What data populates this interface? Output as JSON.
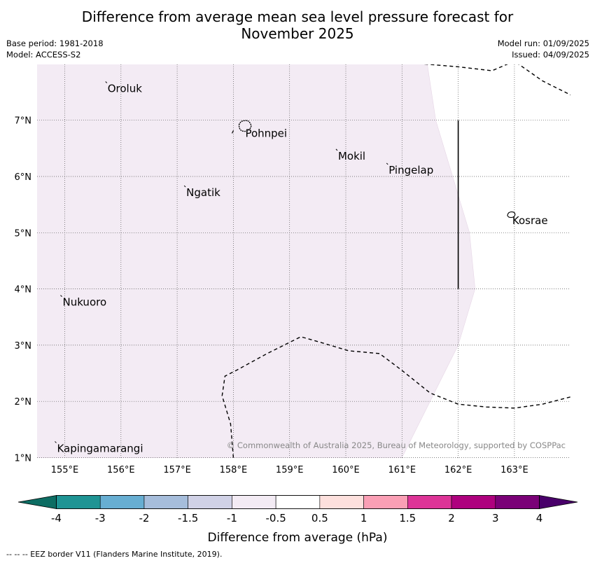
{
  "title": {
    "line1": "Difference from average mean sea level pressure forecast for",
    "line2": "November 2025"
  },
  "meta": {
    "base_period": "Base period: 1981-2018",
    "model": "Model: ACCESS-S2",
    "model_run": "Model run: 01/09/2025",
    "issued": "Issued: 04/09/2025"
  },
  "map": {
    "lon_range": [
      154.5,
      164.0
    ],
    "lat_range": [
      1.0,
      8.0
    ],
    "lon_ticks": [
      {
        "value": 155,
        "label": "155°E"
      },
      {
        "value": 156,
        "label": "156°E"
      },
      {
        "value": 157,
        "label": "157°E"
      },
      {
        "value": 158,
        "label": "158°E"
      },
      {
        "value": 159,
        "label": "159°E"
      },
      {
        "value": 160,
        "label": "160°E"
      },
      {
        "value": 161,
        "label": "161°E"
      },
      {
        "value": 162,
        "label": "162°E"
      },
      {
        "value": 163,
        "label": "163°E"
      }
    ],
    "lat_ticks": [
      {
        "value": 1,
        "label": "1°N"
      },
      {
        "value": 2,
        "label": "2°N"
      },
      {
        "value": 3,
        "label": "3°N"
      },
      {
        "value": 4,
        "label": "4°N"
      },
      {
        "value": 5,
        "label": "5°N"
      },
      {
        "value": 6,
        "label": "6°N"
      },
      {
        "value": 7,
        "label": "7°N"
      }
    ],
    "places": [
      {
        "name": "Oroluk",
        "lon": 155.75,
        "lat": 7.65
      },
      {
        "name": "Pohnpei",
        "lon": 158.2,
        "lat": 6.85
      },
      {
        "name": "Mokil",
        "lon": 159.85,
        "lat": 6.45
      },
      {
        "name": "Pingelap",
        "lon": 160.75,
        "lat": 6.2
      },
      {
        "name": "Ngatik",
        "lon": 157.15,
        "lat": 5.8
      },
      {
        "name": "Kosrae",
        "lon": 162.95,
        "lat": 5.3
      },
      {
        "name": "Nukuoro",
        "lon": 154.95,
        "lat": 3.85
      },
      {
        "name": "Kapingamarangi",
        "lon": 154.85,
        "lat": 1.25
      }
    ],
    "anomaly_region": {
      "value_range": [
        -1,
        -0.5
      ],
      "color": "#f3ebf4",
      "boundary": [
        [
          154.5,
          8.0
        ],
        [
          161.45,
          8.0
        ],
        [
          161.6,
          7.0
        ],
        [
          161.9,
          6.0
        ],
        [
          162.2,
          5.0
        ],
        [
          162.3,
          4.0
        ],
        [
          162.0,
          3.0
        ],
        [
          161.5,
          2.0
        ],
        [
          161.0,
          1.0
        ],
        [
          154.5,
          1.0
        ]
      ]
    },
    "eez_lines": [
      [
        [
          158.0,
          1.0
        ],
        [
          157.95,
          1.6
        ],
        [
          157.8,
          2.1
        ],
        [
          157.85,
          2.45
        ],
        [
          158.05,
          2.55
        ],
        [
          158.6,
          2.85
        ],
        [
          159.0,
          3.05
        ],
        [
          159.2,
          3.15
        ],
        [
          159.55,
          3.05
        ],
        [
          160.05,
          2.9
        ],
        [
          160.6,
          2.85
        ],
        [
          161.0,
          2.55
        ],
        [
          161.5,
          2.15
        ],
        [
          162.0,
          1.95
        ],
        [
          162.5,
          1.9
        ],
        [
          163.0,
          1.88
        ],
        [
          163.5,
          1.95
        ],
        [
          164.0,
          2.08
        ]
      ],
      [
        [
          161.4,
          8.0
        ],
        [
          162.0,
          7.95
        ],
        [
          162.6,
          7.88
        ],
        [
          163.0,
          8.05
        ],
        [
          163.5,
          7.7
        ],
        [
          164.0,
          7.45
        ]
      ]
    ],
    "kosrae_boundary_lon": 162.0,
    "kosrae_boundary_lat": [
      4.0,
      7.0
    ],
    "copyright": "© Commonwealth of Australia 2025, Bureau of Meteorology, supported by COSPPac"
  },
  "colorbar": {
    "label": "Difference from average (hPa)",
    "under_color": "#0d6d63",
    "over_color": "#49006a",
    "bins": [
      {
        "color": "#1f9494"
      },
      {
        "color": "#67aed2"
      },
      {
        "color": "#a6bddb"
      },
      {
        "color": "#d0d1e6"
      },
      {
        "color": "#f3ebf4"
      },
      {
        "color": "#ffffff"
      },
      {
        "color": "#fde0dd"
      },
      {
        "color": "#fa9fb5"
      },
      {
        "color": "#dd3497"
      },
      {
        "color": "#ae017e"
      },
      {
        "color": "#7a0177"
      }
    ],
    "tick_labels": [
      "-4",
      "-3",
      "-2",
      "-1.5",
      "-1",
      "-0.5",
      "0.5",
      "1",
      "1.5",
      "2",
      "3",
      "4"
    ]
  },
  "footnote": "--  --  -- EEZ border V11 (Flanders Marine Institute, 2019)."
}
